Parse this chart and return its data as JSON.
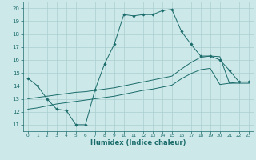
{
  "xlabel": "Humidex (Indice chaleur)",
  "ylabel": "",
  "background_color": "#cde8e8",
  "grid_color": "#aacfcf",
  "line_color": "#1a6b6b",
  "xlim": [
    -0.5,
    23.5
  ],
  "ylim": [
    10.5,
    20.5
  ],
  "xticks": [
    0,
    1,
    2,
    3,
    4,
    5,
    6,
    7,
    8,
    9,
    10,
    11,
    12,
    13,
    14,
    15,
    16,
    17,
    18,
    19,
    20,
    21,
    22,
    23
  ],
  "yticks": [
    11,
    12,
    13,
    14,
    15,
    16,
    17,
    18,
    19,
    20
  ],
  "line1_x": [
    0,
    1,
    2,
    3,
    4,
    5,
    6,
    7,
    8,
    9,
    10,
    11,
    12,
    13,
    14,
    15,
    16,
    17,
    18,
    19,
    20,
    21,
    22,
    23
  ],
  "line1_y": [
    14.6,
    14.0,
    13.0,
    12.2,
    12.1,
    11.0,
    11.0,
    13.7,
    15.7,
    17.2,
    19.5,
    19.4,
    19.5,
    19.5,
    19.8,
    19.9,
    18.2,
    17.2,
    16.3,
    16.3,
    16.0,
    15.2,
    14.3,
    14.3
  ],
  "line2_x": [
    0,
    1,
    2,
    3,
    4,
    5,
    6,
    7,
    8,
    9,
    10,
    11,
    12,
    13,
    14,
    15,
    16,
    17,
    18,
    19,
    20,
    21,
    22,
    23
  ],
  "line2_y": [
    13.0,
    13.1,
    13.2,
    13.3,
    13.4,
    13.5,
    13.55,
    13.65,
    13.75,
    13.85,
    14.0,
    14.15,
    14.3,
    14.45,
    14.6,
    14.75,
    15.3,
    15.8,
    16.2,
    16.3,
    16.25,
    14.2,
    14.3,
    14.3
  ],
  "line3_x": [
    0,
    1,
    2,
    3,
    4,
    5,
    6,
    7,
    8,
    9,
    10,
    11,
    12,
    13,
    14,
    15,
    16,
    17,
    18,
    19,
    20,
    21,
    22,
    23
  ],
  "line3_y": [
    12.2,
    12.3,
    12.45,
    12.6,
    12.7,
    12.8,
    12.9,
    13.0,
    13.1,
    13.2,
    13.35,
    13.5,
    13.65,
    13.75,
    13.9,
    14.05,
    14.55,
    14.95,
    15.25,
    15.35,
    14.1,
    14.2,
    14.2,
    14.2
  ]
}
